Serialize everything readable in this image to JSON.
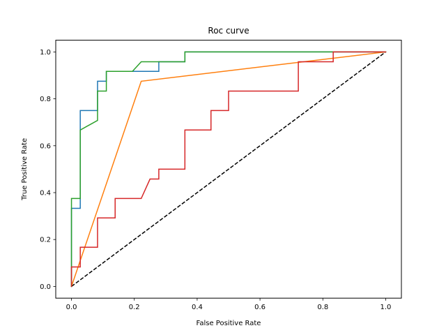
{
  "chart_data": {
    "type": "line",
    "title": "Roc curve",
    "xlabel": "False Positive Rate",
    "ylabel": "True Positive Rate",
    "xlim": [
      -0.05,
      1.05
    ],
    "ylim": [
      -0.05,
      1.05
    ],
    "xticks": [
      0.0,
      0.2,
      0.4,
      0.6,
      0.8,
      1.0
    ],
    "yticks": [
      0.0,
      0.2,
      0.4,
      0.6,
      0.8,
      1.0
    ],
    "xtick_labels": [
      "0.0",
      "0.2",
      "0.4",
      "0.6",
      "0.8",
      "1.0"
    ],
    "ytick_labels": [
      "0.0",
      "0.2",
      "0.4",
      "0.6",
      "0.8",
      "1.0"
    ],
    "grid": false,
    "series": [
      {
        "color": "#1f77b4",
        "x": [
          0,
          0,
          0,
          0.028,
          0.028,
          0.083,
          0.083,
          0.111,
          0.111,
          0.278,
          0.278,
          0.361,
          0.361,
          1.0
        ],
        "y": [
          0,
          0.333,
          0.333,
          0.333,
          0.75,
          0.75,
          0.875,
          0.875,
          0.917,
          0.917,
          0.958,
          0.958,
          1.0,
          1.0
        ]
      },
      {
        "color": "#ff7f0e",
        "x": [
          0,
          0.222,
          1.0
        ],
        "y": [
          0,
          0.875,
          1.0
        ]
      },
      {
        "color": "#2ca02c",
        "x": [
          0,
          0,
          0.028,
          0.028,
          0.083,
          0.083,
          0.111,
          0.111,
          0.194,
          0.222,
          0.361,
          0.361,
          1.0
        ],
        "y": [
          0,
          0.375,
          0.375,
          0.667,
          0.708,
          0.833,
          0.833,
          0.917,
          0.917,
          0.958,
          0.958,
          1.0,
          1.0
        ]
      },
      {
        "color": "#d62728",
        "x": [
          0,
          0,
          0.028,
          0.028,
          0.083,
          0.083,
          0.139,
          0.139,
          0.222,
          0.25,
          0.25,
          0.278,
          0.278,
          0.361,
          0.361,
          0.444,
          0.444,
          0.5,
          0.5,
          0.722,
          0.722,
          0.833,
          0.833,
          1.0
        ],
        "y": [
          0,
          0.083,
          0.083,
          0.167,
          0.167,
          0.292,
          0.292,
          0.375,
          0.375,
          0.458,
          0.458,
          0.458,
          0.5,
          0.5,
          0.667,
          0.667,
          0.75,
          0.75,
          0.833,
          0.833,
          0.958,
          0.958,
          1.0,
          1.0
        ]
      }
    ],
    "reference_line": {
      "color": "#000000",
      "style": "dashed",
      "x": [
        0,
        1
      ],
      "y": [
        0,
        1
      ]
    }
  }
}
